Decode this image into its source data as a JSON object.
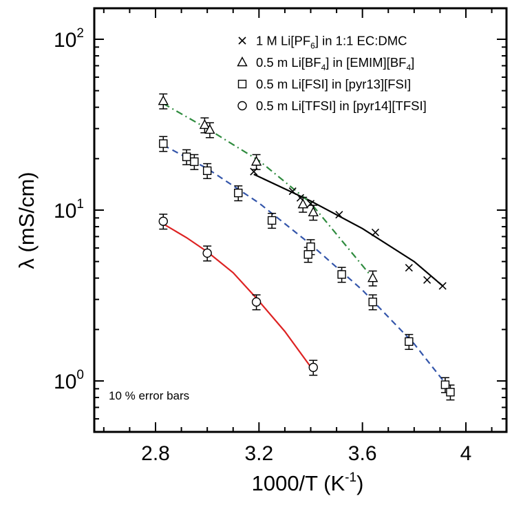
{
  "chart_data": {
    "type": "scatter",
    "title": "",
    "xlabel_main": "1000/T (K",
    "xlabel_sup": "-1",
    "xlabel_close": ")",
    "ylabel": "λ (mS/cm)",
    "xlim": [
      2.56,
      4.16
    ],
    "ylim": [
      0.5,
      120
    ],
    "yscale": "log",
    "x_ticks": [
      {
        "value": 2.8,
        "label": "2.8"
      },
      {
        "value": 3.2,
        "label": "3.2"
      },
      {
        "value": 3.6,
        "label": "3.6"
      },
      {
        "value": 4.0,
        "label": "4"
      }
    ],
    "y_ticks": [
      {
        "value": 1,
        "base": "10",
        "exp": "0"
      },
      {
        "value": 10,
        "base": "10",
        "exp": "1"
      },
      {
        "value": 100,
        "base": "10",
        "exp": "2"
      }
    ],
    "legend_position": "top-right",
    "annotation": "10 % error bars",
    "error_bar_fraction": 0.1,
    "series": [
      {
        "name_parts": [
          {
            "t": "1 M Li[PF",
            "s": false
          },
          {
            "t": "6",
            "s": true
          },
          {
            "t": "] in 1:1 EC:DMC",
            "s": false
          }
        ],
        "marker": "cross",
        "error_bars": false,
        "line_color": "#000000",
        "line_style": "solid",
        "x": [
          3.18,
          3.33,
          3.36,
          3.4,
          3.51,
          3.65,
          3.78,
          3.85,
          3.91
        ],
        "y": [
          16.8,
          12.9,
          11.8,
          10.9,
          9.4,
          7.4,
          4.6,
          3.9,
          3.6
        ],
        "fit_x": [
          3.18,
          3.4,
          3.6,
          3.8,
          3.91
        ],
        "fit_y": [
          16.2,
          11.3,
          7.8,
          5.0,
          3.6
        ]
      },
      {
        "name_parts": [
          {
            "t": "0.5 m Li[BF",
            "s": false
          },
          {
            "t": "4",
            "s": true
          },
          {
            "t": "] in [EMIM][BF",
            "s": false
          },
          {
            "t": "4",
            "s": true
          },
          {
            "t": "]",
            "s": false
          }
        ],
        "marker": "triangle",
        "error_bars": true,
        "line_color": "#2e8b3e",
        "line_style": "dashdot",
        "x": [
          2.83,
          2.99,
          3.01,
          3.19,
          3.37,
          3.41,
          3.64
        ],
        "y": [
          43.5,
          31.5,
          29.5,
          19.2,
          10.8,
          9.7,
          4.0
        ],
        "fit_x": [
          2.83,
          3.0,
          3.2,
          3.4,
          3.64
        ],
        "fit_y": [
          42.0,
          30.0,
          19.5,
          11.0,
          4.0
        ]
      },
      {
        "name_parts": [
          {
            "t": "0.5 m Li[FSI] in [pyr13][FSI]",
            "s": false
          }
        ],
        "marker": "square",
        "error_bars": true,
        "line_color": "#3355aa",
        "line_style": "dashed",
        "x": [
          2.83,
          2.92,
          2.95,
          3.0,
          3.12,
          3.25,
          3.39,
          3.4,
          3.52,
          3.64,
          3.78,
          3.92,
          3.94
        ],
        "y": [
          24.5,
          20.5,
          19.2,
          17.0,
          12.6,
          8.7,
          5.5,
          6.1,
          4.2,
          2.9,
          1.7,
          0.95,
          0.86
        ],
        "fit_x": [
          2.83,
          3.0,
          3.2,
          3.4,
          3.6,
          3.8,
          3.95
        ],
        "fit_y": [
          24.0,
          17.5,
          11.0,
          6.3,
          3.4,
          1.65,
          0.85
        ]
      },
      {
        "name_parts": [
          {
            "t": "0.5 m Li[TFSI] in [pyr14][TFSI]",
            "s": false
          }
        ],
        "marker": "circle",
        "error_bars": true,
        "line_color": "#dd2222",
        "line_style": "solid",
        "x": [
          2.83,
          3.0,
          3.19,
          3.41
        ],
        "y": [
          8.6,
          5.6,
          2.9,
          1.2
        ],
        "fit_x": [
          2.83,
          2.92,
          3.0,
          3.1,
          3.19,
          3.3,
          3.41
        ],
        "fit_y": [
          8.3,
          6.9,
          5.7,
          4.3,
          3.05,
          1.95,
          1.15
        ]
      }
    ]
  }
}
